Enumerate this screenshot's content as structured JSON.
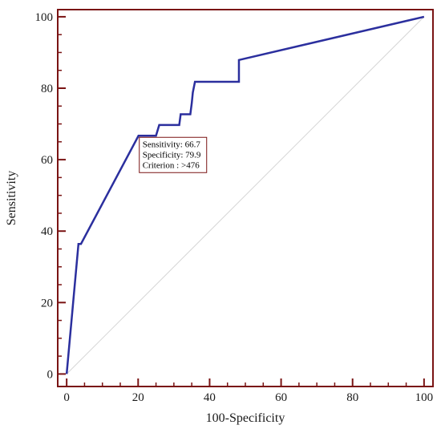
{
  "chart_data": {
    "type": "line",
    "xlabel": "100-Specificity",
    "ylabel": "Sensitivity",
    "xlim": [
      -2.5,
      102.5
    ],
    "ylim": [
      -3.5,
      102
    ],
    "x_ticks": [
      0,
      20,
      40,
      60,
      80,
      100
    ],
    "y_ticks": [
      0,
      20,
      40,
      60,
      80,
      100
    ],
    "grid": false,
    "series": [
      {
        "x": [
          0,
          3.3,
          4.0,
          20.1,
          25.0,
          25.9,
          31.5,
          31.9,
          34.6,
          35.0,
          35.3,
          35.9,
          48.2,
          48.2,
          100
        ],
        "y": [
          0,
          36.4,
          36.4,
          66.7,
          66.7,
          69.7,
          69.7,
          72.7,
          72.7,
          75.8,
          78.8,
          81.8,
          81.8,
          87.9,
          100
        ]
      }
    ],
    "reference_line": {
      "x": [
        0,
        100
      ],
      "y": [
        0,
        100
      ]
    },
    "annotation": {
      "lines": [
        "Sensitivity: 66.7",
        "Specificity: 79.9",
        "Criterion : >476"
      ],
      "point": [
        20.1,
        66.7
      ]
    },
    "colors": {
      "curve": "#2b2f9e",
      "axes": "#7a1414",
      "reference": "#d6d6d6"
    }
  }
}
